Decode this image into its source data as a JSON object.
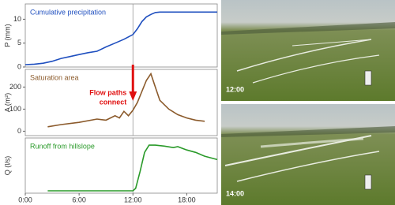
{
  "chart_data": [
    {
      "type": "line",
      "title": "Cumulative precipitation",
      "ylabel": "P (mm)",
      "color": "#1f4fbf",
      "x": [
        0,
        1,
        2,
        3,
        4,
        5,
        6,
        7,
        8,
        9,
        10,
        11,
        11.5,
        12,
        12.5,
        13,
        13.5,
        14,
        14.5,
        15,
        16,
        18,
        21.4
      ],
      "values": [
        0.5,
        0.6,
        0.8,
        1.2,
        1.8,
        2.2,
        2.6,
        3.0,
        3.3,
        4.2,
        5.0,
        5.8,
        6.3,
        6.8,
        8.0,
        9.5,
        10.5,
        11.0,
        11.4,
        11.5,
        11.5,
        11.5,
        11.5
      ],
      "xlim": [
        0,
        21.4
      ],
      "ylim": [
        0,
        13.2
      ],
      "yticks": [
        0,
        5,
        10
      ],
      "vline": 12
    },
    {
      "type": "line",
      "title": "Saturation area",
      "ylabel": "A (m²)",
      "color": "#8b5a2b",
      "x": [
        2.5,
        4,
        6,
        8,
        9,
        10,
        10.5,
        11,
        11.5,
        12,
        12.5,
        13,
        13.5,
        14,
        14.5,
        15,
        16,
        17,
        18,
        19,
        20
      ],
      "values": [
        20,
        30,
        40,
        55,
        50,
        70,
        60,
        90,
        70,
        95,
        130,
        180,
        230,
        260,
        200,
        140,
        100,
        75,
        60,
        50,
        45
      ],
      "xlim": [
        0,
        21.4
      ],
      "ylim": [
        -20,
        280
      ],
      "yticks": [
        0,
        100,
        200
      ],
      "vline": 12,
      "annotation": [
        "Flow paths",
        "connect"
      ],
      "annotation_color": "#e01010"
    },
    {
      "type": "line",
      "title": "Runoff from hillslope",
      "ylabel": "Q (l/s)",
      "color": "#2a9a2a",
      "x": [
        2.5,
        6,
        10,
        12,
        12.3,
        12.8,
        13.3,
        13.8,
        14.5,
        15.5,
        16.5,
        17,
        18,
        19,
        20,
        21.4
      ],
      "values": [
        0,
        0,
        0,
        0,
        0.05,
        0.4,
        0.8,
        0.95,
        0.95,
        0.93,
        0.9,
        0.92,
        0.85,
        0.8,
        0.72,
        0.65
      ],
      "xlim": [
        0,
        21.4
      ],
      "ylim": [
        -0.05,
        1.1
      ],
      "vline": 12,
      "xticks": [
        {
          "value": 0,
          "label": "0:00"
        },
        {
          "value": 6,
          "label": "6:00"
        },
        {
          "value": 12,
          "label": "12:00"
        },
        {
          "value": 18,
          "label": "18:00"
        }
      ]
    }
  ],
  "photos": [
    {
      "label": "12:00"
    },
    {
      "label": "14:00"
    }
  ]
}
